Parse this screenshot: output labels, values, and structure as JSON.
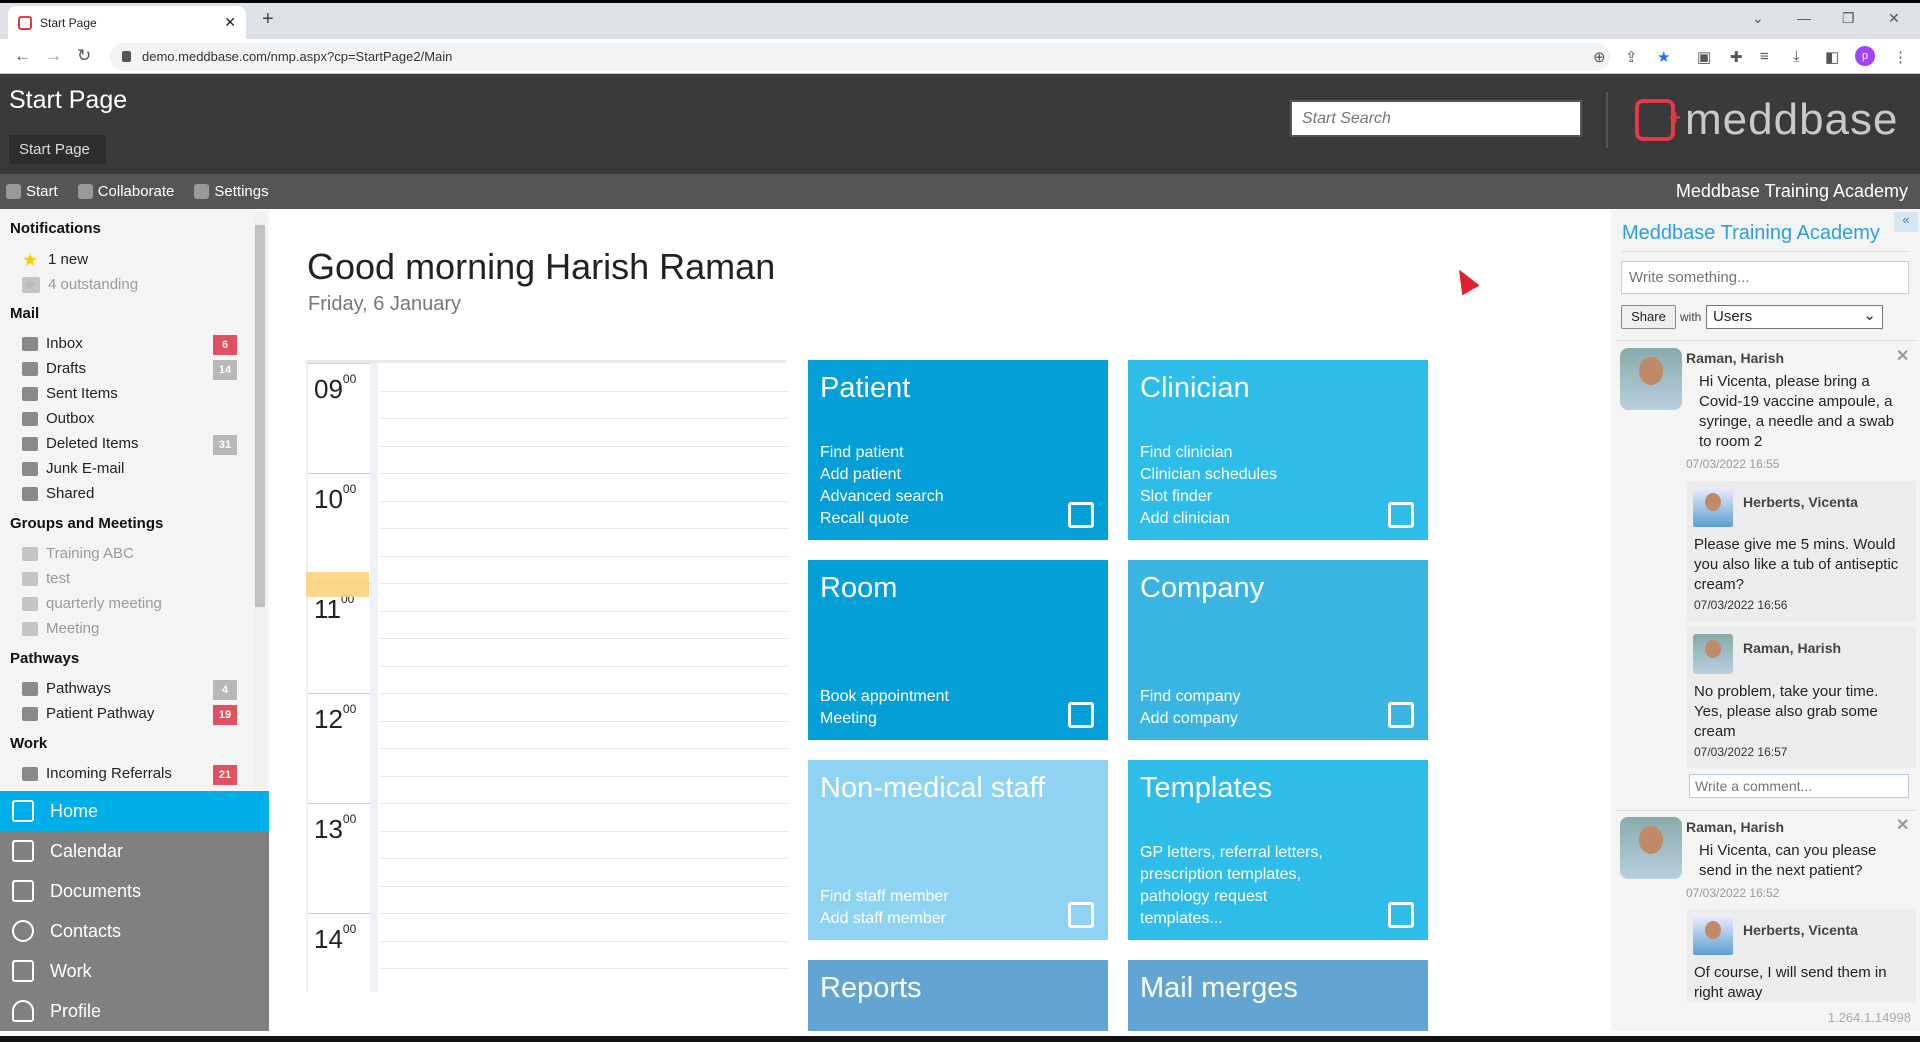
{
  "browser": {
    "tab_title": "Start Page",
    "url": "demo.meddbase.com/nmp.aspx?cp=StartPage2/Main",
    "profile_initial": "p"
  },
  "header": {
    "title": "Start Page",
    "breadcrumb": "Start Page",
    "search_placeholder": "Start Search",
    "logo_text": "meddbase"
  },
  "navbar": {
    "items": [
      {
        "label": "Start",
        "icon": "gear-icon"
      },
      {
        "label": "Collaborate",
        "icon": "users-icon"
      },
      {
        "label": "Settings",
        "icon": "settings-icon"
      }
    ],
    "organization": "Meddbase Training Academy"
  },
  "sidebar": {
    "notifications": {
      "heading": "Notifications",
      "items": [
        {
          "label": "1 new",
          "icon": "star-icon"
        },
        {
          "label": "4 outstanding",
          "icon": "star-icon"
        }
      ]
    },
    "mail": {
      "heading": "Mail",
      "items": [
        {
          "label": "Inbox",
          "badge": "6"
        },
        {
          "label": "Drafts",
          "badge": "14"
        },
        {
          "label": "Sent Items"
        },
        {
          "label": "Outbox"
        },
        {
          "label": "Deleted Items",
          "badge": "31"
        },
        {
          "label": "Junk E-mail"
        },
        {
          "label": "Shared"
        }
      ]
    },
    "groups": {
      "heading": "Groups and Meetings",
      "items": [
        {
          "label": "Training ABC"
        },
        {
          "label": "test"
        },
        {
          "label": "quarterly meeting"
        },
        {
          "label": "Meeting"
        }
      ]
    },
    "pathways": {
      "heading": "Pathways",
      "items": [
        {
          "label": "Pathways",
          "badge": "4"
        },
        {
          "label": "Patient Pathway",
          "badge": "19"
        }
      ]
    },
    "work": {
      "heading": "Work",
      "items": [
        {
          "label": "Incoming Referrals",
          "badge": "21"
        }
      ]
    }
  },
  "bottom_nav": [
    {
      "label": "Home",
      "active": true
    },
    {
      "label": "Calendar"
    },
    {
      "label": "Documents"
    },
    {
      "label": "Contacts"
    },
    {
      "label": "Work"
    },
    {
      "label": "Profile"
    }
  ],
  "main": {
    "greeting": "Good morning Harish Raman",
    "date": "Friday, 6 January",
    "calendar": {
      "hours": [
        "09",
        "10",
        "11",
        "12",
        "13",
        "14"
      ],
      "minutes": "00"
    },
    "tiles": [
      {
        "title": "Patient",
        "links": [
          "Find patient",
          "Add patient",
          "Advanced search",
          "Recall quote"
        ],
        "color": "#039fd6",
        "icon": "patients-icon"
      },
      {
        "title": "Clinician",
        "links": [
          "Find clinician",
          "Clinician schedules",
          "Slot finder",
          "Add clinician"
        ],
        "color": "#2ebde9",
        "icon": "medical-bag-icon"
      },
      {
        "title": "Room",
        "links": [
          "Book appointment",
          "Meeting"
        ],
        "color": "#039fd6",
        "icon": "calendar-icon"
      },
      {
        "title": "Company",
        "links": [
          "Find company",
          "Add company"
        ],
        "color": "#3ab4e0",
        "icon": "building-icon"
      },
      {
        "title": "Non-medical staff",
        "links": [
          "Find staff member",
          "Add staff member"
        ],
        "color": "#8fd3f2",
        "icon": "staff-icon"
      },
      {
        "title": "Templates",
        "links": [
          "GP letters, referral letters,",
          "prescription templates,",
          "pathology request",
          "templates..."
        ],
        "color": "#2ebde9",
        "icon": "document-icon"
      },
      {
        "title": "Reports",
        "links": [],
        "color": "#63a5d2"
      },
      {
        "title": "Mail merges",
        "links": [],
        "color": "#63a5d2"
      }
    ]
  },
  "feed": {
    "title": "Meddbase Training Academy",
    "write_placeholder": "Write something...",
    "share_label": "Share",
    "with_label": "with",
    "share_with": "Users",
    "comment_placeholder": "Write a comment...",
    "posts": [
      {
        "author": "Raman, Harish",
        "text": "Hi Vicenta, please bring a Covid-19 vaccine ampoule, a syringe, a needle and a swab to room 2",
        "time": "07/03/2022 16:55",
        "replies": [
          {
            "author": "Herberts, Vicenta",
            "text": "Please give me 5 mins. Would you also like a tub of antiseptic cream?",
            "time": "07/03/2022 16:56"
          },
          {
            "author": "Raman, Harish",
            "text": "No problem, take your time. Yes, please also grab some cream",
            "time": "07/03/2022 16:57"
          }
        ]
      },
      {
        "author": "Raman, Harish",
        "text": "Hi Vicenta, can you please send in the next patient?",
        "time": "07/03/2022 16:52",
        "replies": [
          {
            "author": "Herberts, Vicenta",
            "text": "Of course, I will send them in right away"
          }
        ]
      }
    ]
  },
  "version": "1.264.1.14998"
}
